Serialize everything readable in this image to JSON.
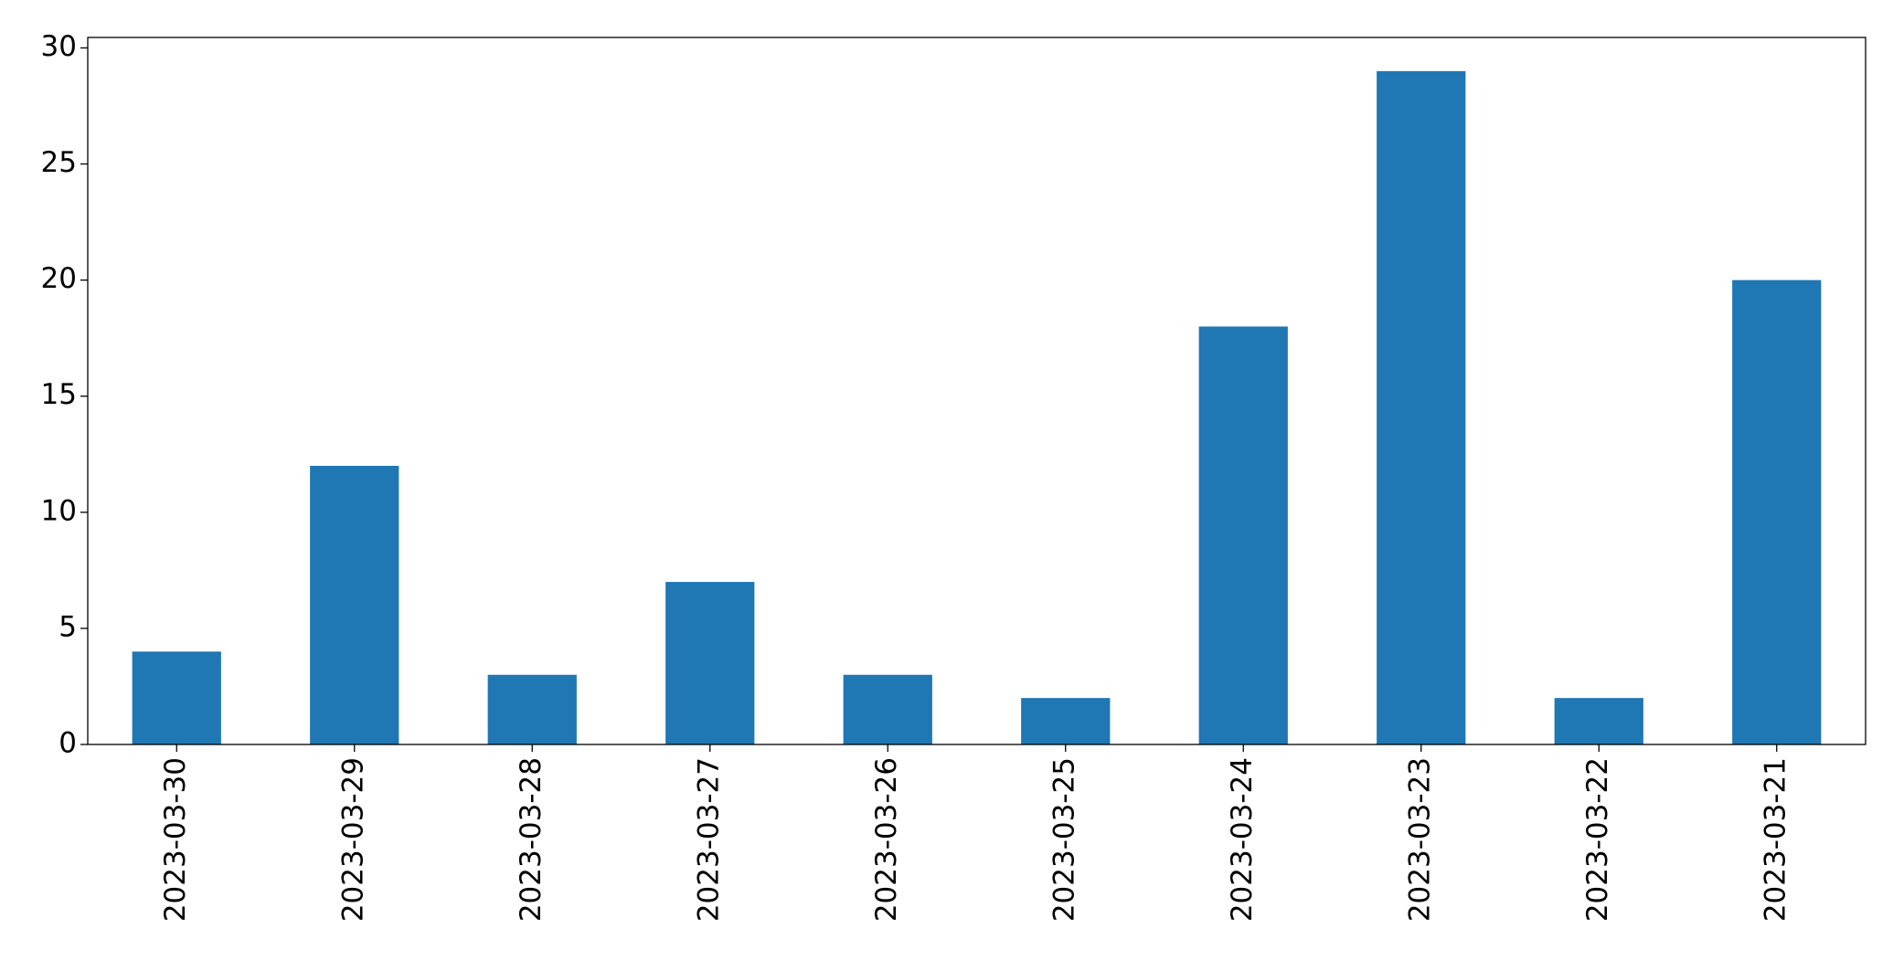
{
  "chart_data": {
    "type": "bar",
    "categories": [
      "2023-03-30",
      "2023-03-29",
      "2023-03-28",
      "2023-03-27",
      "2023-03-26",
      "2023-03-25",
      "2023-03-24",
      "2023-03-23",
      "2023-03-22",
      "2023-03-21"
    ],
    "values": [
      4,
      12,
      3,
      7,
      3,
      2,
      18,
      29,
      2,
      20
    ],
    "color": "#1f77b4",
    "ylim": [
      0,
      30.45
    ],
    "yticks": [
      0,
      5,
      10,
      15,
      20,
      25,
      30
    ],
    "grid": false
  }
}
